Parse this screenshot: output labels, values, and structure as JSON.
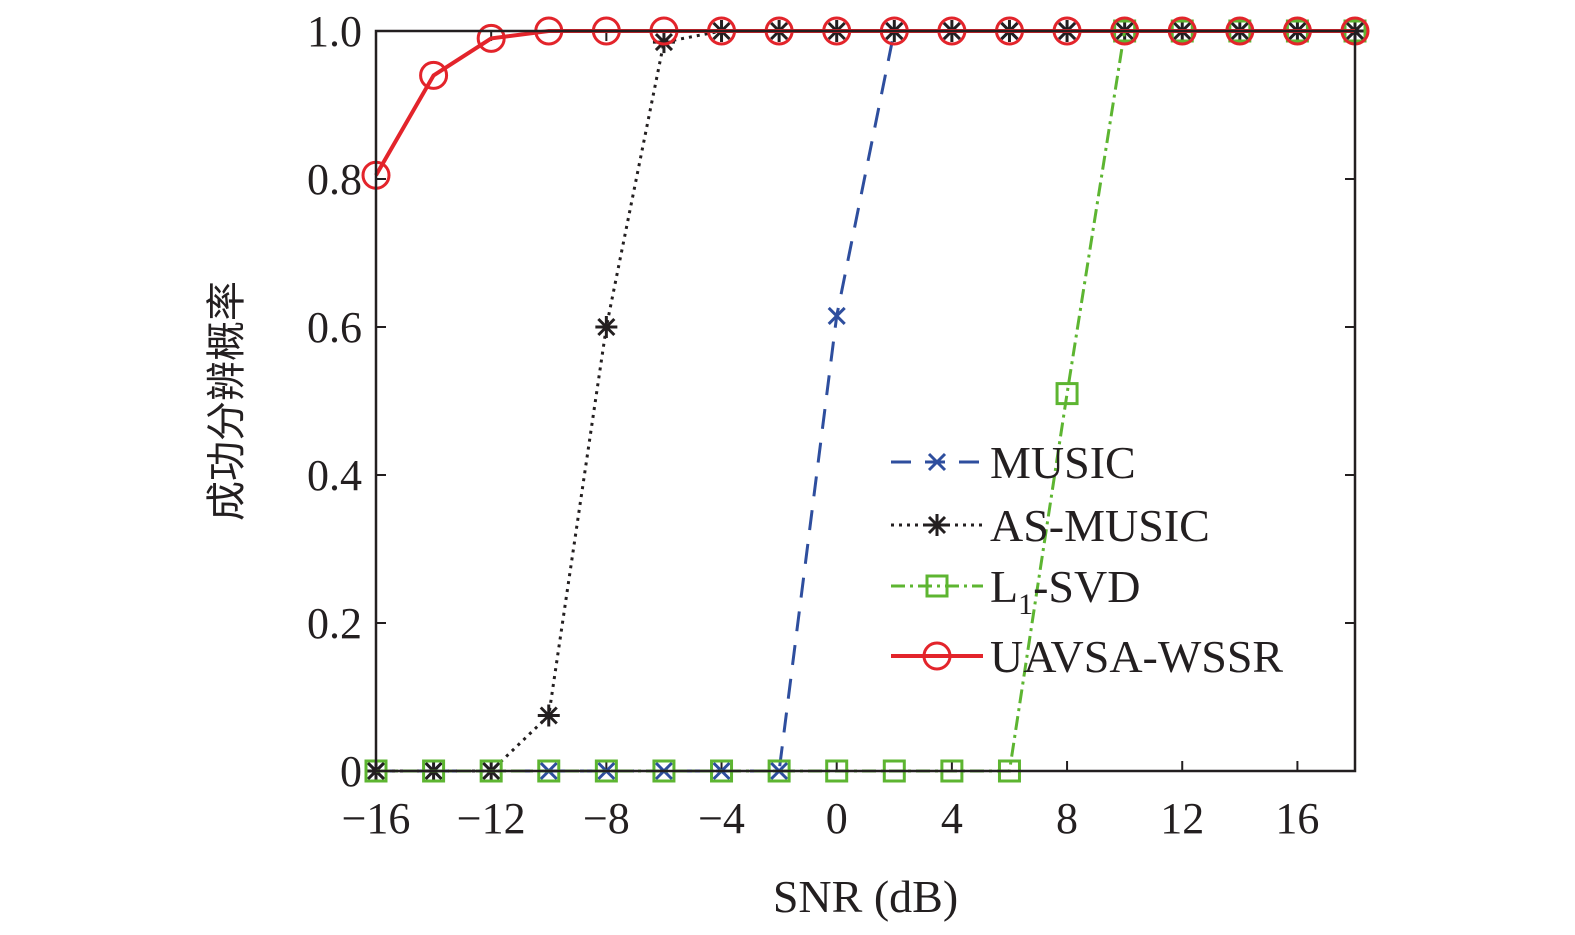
{
  "chart_data": {
    "type": "line",
    "xlabel": "SNR (dB)",
    "ylabel": "成功分辨概率",
    "xlim": [
      -16,
      18
    ],
    "ylim": [
      0,
      1
    ],
    "x_ticks": [
      -16,
      -12,
      -8,
      -4,
      0,
      4,
      8,
      12,
      16
    ],
    "x_tick_labels": [
      "−16",
      "−12",
      "−8",
      "−4",
      "0",
      "4",
      "8",
      "12",
      "16"
    ],
    "y_ticks": [
      0,
      0.2,
      0.4,
      0.6,
      0.8,
      1.0
    ],
    "y_tick_labels": [
      "0",
      "0.2",
      "0.4",
      "0.6",
      "0.8",
      "1.0"
    ],
    "legend_position": "center-right",
    "x": [
      -16,
      -14,
      -12,
      -10,
      -8,
      -6,
      -4,
      -2,
      0,
      2,
      4,
      6,
      8,
      10,
      12,
      14,
      16,
      18
    ],
    "series": [
      {
        "name": "MUSIC",
        "legend_label": "MUSIC",
        "color": "#2e4e9e",
        "dash": "20,14",
        "marker": "x",
        "values": [
          0,
          0,
          0,
          0,
          0,
          0,
          0,
          0,
          0.615,
          1,
          1,
          1,
          1,
          1,
          1,
          1,
          1,
          1
        ]
      },
      {
        "name": "AS-MUSIC",
        "legend_label": "AS-MUSIC",
        "color": "#231f20",
        "dash": "3,5",
        "marker": "asterisk",
        "values": [
          0,
          0,
          0,
          0.075,
          0.6,
          0.985,
          1,
          1,
          1,
          1,
          1,
          1,
          1,
          1,
          1,
          1,
          1,
          1
        ]
      },
      {
        "name": "L1-SVD",
        "legend_label_main": "L",
        "legend_label_sub": "1",
        "legend_label_rest": "-SVD",
        "color": "#5db531",
        "dash": "14,5,3,5",
        "marker": "square",
        "values": [
          0,
          0,
          0,
          0,
          0,
          0,
          0,
          0,
          0,
          0,
          0,
          0,
          0.51,
          1,
          1,
          1,
          1,
          1
        ]
      },
      {
        "name": "UAVSA-WSSR",
        "legend_label": "UAVSA-WSSR",
        "color": "#e3242b",
        "dash": "",
        "marker": "circle",
        "values": [
          0.805,
          0.94,
          0.99,
          1,
          1,
          1,
          1,
          1,
          1,
          1,
          1,
          1,
          1,
          1,
          1,
          1,
          1,
          1
        ]
      }
    ]
  }
}
